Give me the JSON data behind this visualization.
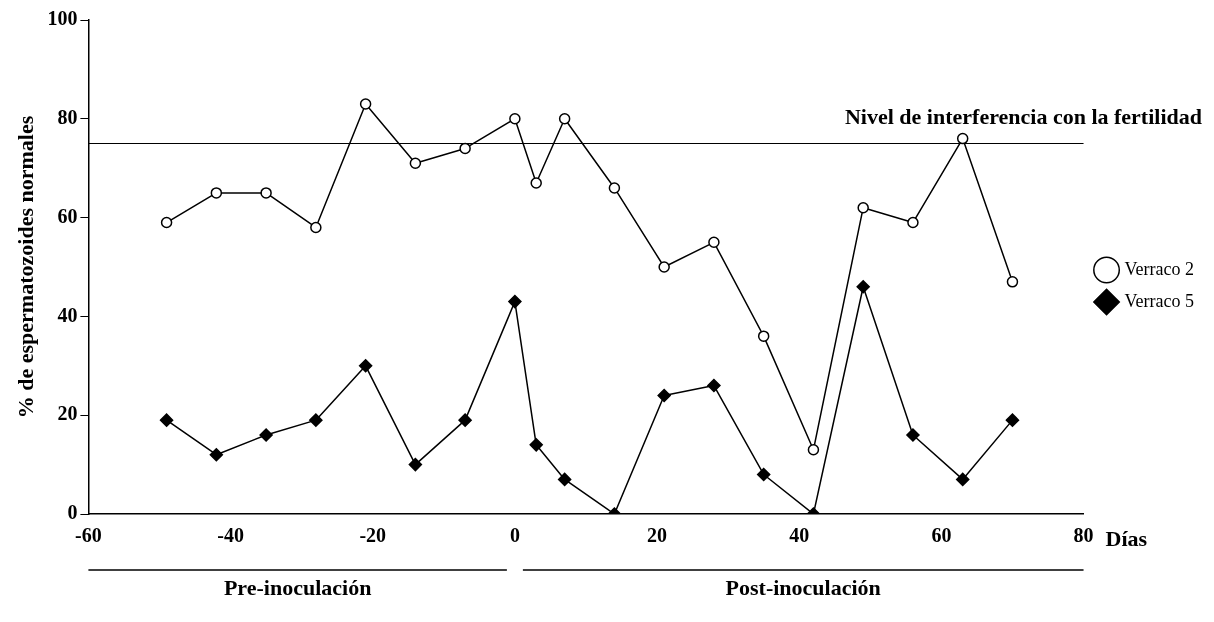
{
  "chart_data": {
    "type": "line",
    "ylabel": "% de espermatozoides normales",
    "xlabel": "Días",
    "x": [
      -49,
      -42,
      -35,
      -28,
      -21,
      -14,
      -7,
      0,
      3,
      7,
      14,
      21,
      28,
      35,
      42,
      49,
      56,
      63,
      70
    ],
    "series": [
      {
        "name": "Verraco 2",
        "color": "#000000",
        "marker": "circle",
        "values": [
          59,
          65,
          65,
          58,
          83,
          71,
          74,
          80,
          67,
          80,
          66,
          50,
          55,
          36,
          13,
          62,
          59,
          76,
          47
        ]
      },
      {
        "name": "Verraco 5",
        "color": "#000000",
        "marker": "diamond",
        "values": [
          19,
          12,
          16,
          19,
          30,
          10,
          19,
          43,
          14,
          7,
          0,
          24,
          26,
          8,
          0,
          46,
          16,
          7,
          19
        ]
      }
    ],
    "xlim": [
      -60,
      80
    ],
    "xticks": [
      -60,
      -40,
      -20,
      0,
      20,
      40,
      60,
      80
    ],
    "ylim": [
      0,
      100
    ],
    "yticks": [
      0,
      20,
      40,
      60,
      80,
      100
    ],
    "ref_lines": [
      {
        "axis": "y",
        "value": 75,
        "label": "Nivel de interferencia con la fertilidad",
        "color": "#000000"
      }
    ],
    "annotations": [
      "Pre-inoculación",
      "Post-inoculación"
    ],
    "grid": false,
    "legend": "right",
    "line_style": "solid"
  }
}
